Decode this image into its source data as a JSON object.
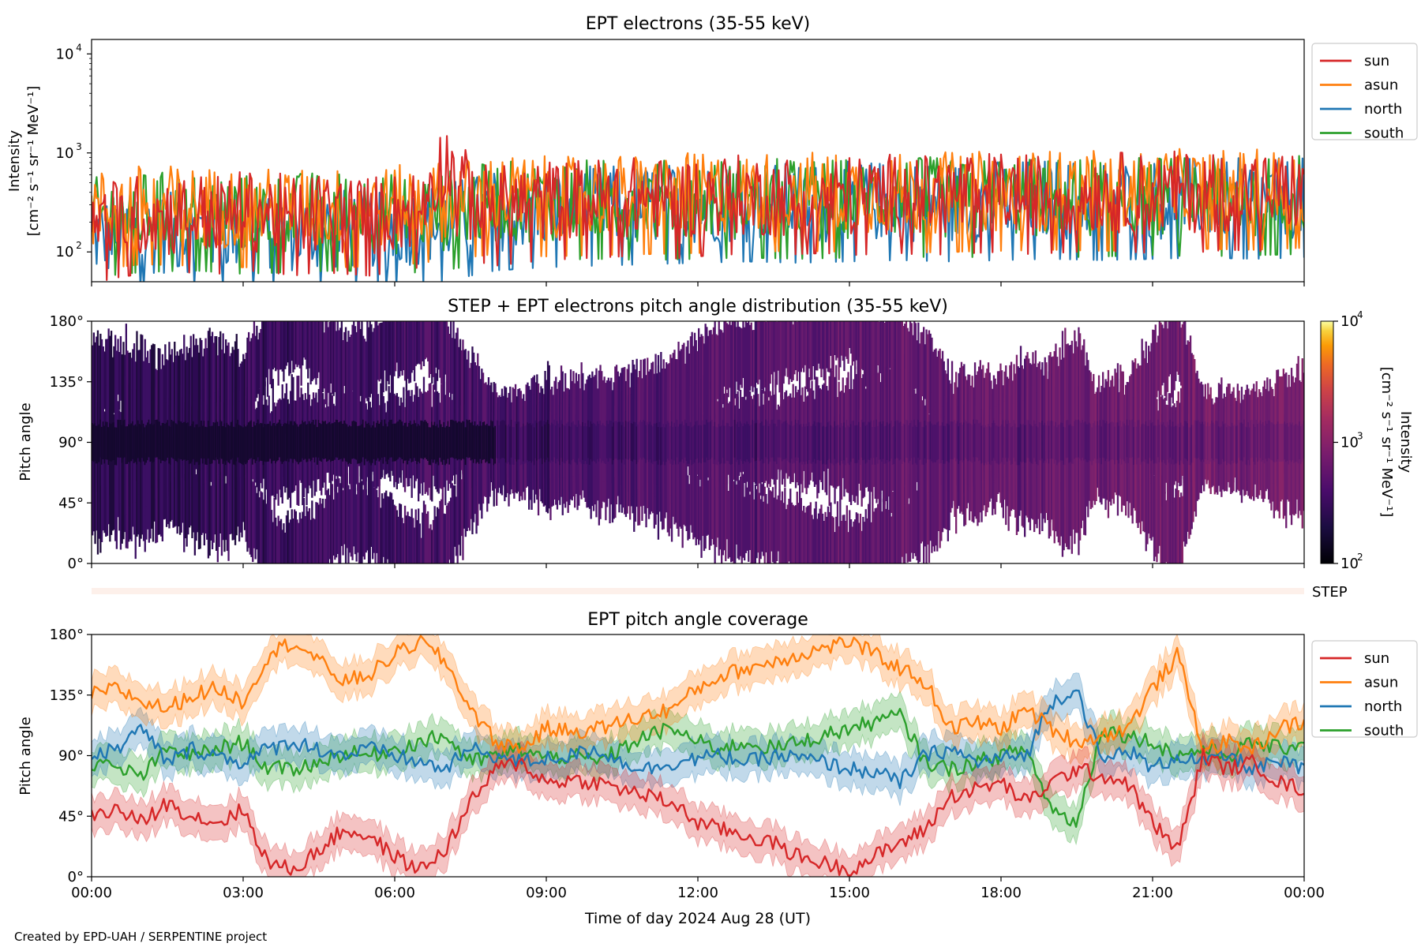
{
  "footer": "Created by EPD-UAH / SERPENTINE project",
  "colors": {
    "sun": "#d62728",
    "asun": "#ff7f0e",
    "north": "#1f77b4",
    "south": "#2ca02c",
    "step_bar": "#fdf0ea"
  },
  "chart_data": [
    {
      "type": "line",
      "title": "EPT electrons (35-55 keV)",
      "ylabel_line1": "Intensity",
      "ylabel_line2": "[cm⁻² s⁻¹ sr⁻¹ MeV⁻¹]",
      "yscale": "log",
      "ylim": [
        50,
        14000
      ],
      "xlim_hours": [
        0,
        24
      ],
      "yticks": [
        {
          "value": 100,
          "base": "10",
          "exp": "2"
        },
        {
          "value": 1000,
          "base": "10",
          "exp": "3"
        },
        {
          "value": 10000,
          "base": "10",
          "exp": "4"
        }
      ],
      "legend_position": "outside-right-top",
      "series": [
        {
          "name": "sun",
          "x_hours": [
            0,
            0.5,
            1,
            1.5,
            2,
            2.5,
            3,
            3.5,
            4,
            4.5,
            5,
            5.5,
            6,
            6.5,
            7,
            7.5,
            8,
            8.5,
            9,
            9.5,
            10,
            10.5,
            11,
            11.5,
            12,
            12.5,
            13,
            13.5,
            14,
            14.5,
            15,
            15.5,
            16,
            16.5,
            17,
            17.5,
            18,
            18.5,
            19,
            19.5,
            20,
            20.5,
            21,
            21.5,
            22,
            22.5,
            23,
            23.5,
            24
          ],
          "values": [
            190,
            220,
            240,
            230,
            250,
            240,
            260,
            250,
            230,
            250,
            240,
            230,
            250,
            280,
            800,
            330,
            290,
            310,
            330,
            340,
            350,
            360,
            350,
            340,
            360,
            380,
            370,
            360,
            380,
            390,
            370,
            380,
            390,
            370,
            380,
            390,
            400,
            380,
            390,
            400,
            410,
            400,
            390,
            410,
            400,
            420,
            410,
            400,
            420
          ]
        },
        {
          "name": "asun",
          "x_hours": [
            0,
            1,
            2,
            3,
            4,
            5,
            6,
            7,
            8,
            9,
            10,
            11,
            12,
            13,
            14,
            15,
            16,
            17,
            18,
            19,
            20,
            21,
            22,
            23,
            24
          ],
          "values": [
            260,
            300,
            290,
            280,
            270,
            280,
            290,
            330,
            380,
            360,
            370,
            380,
            390,
            400,
            410,
            400,
            390,
            400,
            410,
            420,
            410,
            420,
            430,
            420,
            440
          ]
        },
        {
          "name": "north",
          "x_hours": [
            0,
            1,
            2,
            3,
            4,
            5,
            6,
            7,
            8,
            9,
            10,
            11,
            12,
            13,
            14,
            15,
            16,
            17,
            18,
            19,
            20,
            21,
            22,
            23,
            24
          ],
          "values": [
            140,
            150,
            160,
            170,
            160,
            170,
            180,
            200,
            260,
            280,
            290,
            300,
            310,
            320,
            310,
            320,
            330,
            320,
            330,
            340,
            330,
            340,
            350,
            340,
            350
          ]
        },
        {
          "name": "south",
          "x_hours": [
            0,
            1,
            2,
            3,
            4,
            5,
            6,
            7,
            8,
            9,
            10,
            11,
            12,
            13,
            14,
            15,
            16,
            17,
            18,
            19,
            20,
            21,
            22,
            23,
            24
          ],
          "values": [
            220,
            250,
            260,
            240,
            250,
            260,
            240,
            260,
            320,
            330,
            340,
            330,
            340,
            350,
            340,
            350,
            360,
            350,
            360,
            350,
            360,
            370,
            360,
            370,
            380
          ]
        }
      ]
    },
    {
      "type": "heatmap",
      "title": "STEP + EPT electrons pitch angle distribution (35-55 keV)",
      "ylabel": "Pitch angle",
      "ylim": [
        0,
        180
      ],
      "yticks": [
        "0°",
        "45°",
        "90°",
        "135°",
        "180°"
      ],
      "xlim_hours": [
        0,
        24
      ],
      "colorbar": {
        "scale": "log",
        "range": [
          100,
          10000
        ],
        "label_line1": "Intensity",
        "label_line2": "[cm⁻² s⁻¹ sr⁻¹ MeV⁻¹]",
        "ticks": [
          {
            "value": 100,
            "base": "10",
            "exp": "2"
          },
          {
            "value": 1000,
            "base": "10",
            "exp": "3"
          },
          {
            "value": 10000,
            "base": "10",
            "exp": "4"
          }
        ],
        "colormap": "inferno"
      },
      "step_label": "STEP"
    },
    {
      "type": "line",
      "title": "EPT pitch angle coverage",
      "ylabel": "Pitch angle",
      "xlabel": "Time of day 2024 Aug 28 (UT)",
      "ylim": [
        0,
        180
      ],
      "yticks": [
        "0°",
        "45°",
        "90°",
        "135°",
        "180°"
      ],
      "xticks": [
        "00:00",
        "03:00",
        "06:00",
        "09:00",
        "12:00",
        "15:00",
        "18:00",
        "21:00",
        "00:00"
      ],
      "legend_position": "outside-right-top",
      "series": [
        {
          "name": "sun",
          "x_hours": [
            0,
            0.5,
            1,
            1.5,
            2,
            2.5,
            3,
            3.5,
            4,
            4.5,
            5,
            5.5,
            6,
            6.5,
            7,
            7.5,
            8,
            8.5,
            9,
            9.5,
            10,
            10.5,
            11,
            11.5,
            12,
            12.5,
            13,
            13.5,
            14,
            14.5,
            15,
            15.5,
            16,
            16.5,
            17,
            17.5,
            18,
            18.5,
            19,
            19.5,
            20,
            20.5,
            21,
            21.5,
            22,
            22.5,
            23,
            23.5,
            24
          ],
          "values": [
            45,
            50,
            40,
            55,
            45,
            40,
            50,
            10,
            5,
            20,
            35,
            30,
            15,
            5,
            20,
            55,
            80,
            85,
            70,
            72,
            70,
            65,
            60,
            55,
            40,
            35,
            30,
            25,
            15,
            10,
            5,
            15,
            25,
            35,
            60,
            65,
            70,
            55,
            70,
            80,
            75,
            70,
            40,
            20,
            90,
            80,
            85,
            70,
            65
          ]
        },
        {
          "name": "asun",
          "x_hours": [
            0,
            0.5,
            1,
            1.5,
            2,
            2.5,
            3,
            3.5,
            4,
            4.5,
            5,
            5.5,
            6,
            6.5,
            7,
            7.5,
            8,
            8.5,
            9,
            9.5,
            10,
            10.5,
            11,
            11.5,
            12,
            12.5,
            13,
            13.5,
            14,
            14.5,
            15,
            15.5,
            16,
            16.5,
            17,
            17.5,
            18,
            18.5,
            19,
            19.5,
            20,
            20.5,
            21,
            21.5,
            22,
            22.5,
            23,
            23.5,
            24
          ],
          "values": [
            135,
            140,
            130,
            125,
            135,
            140,
            130,
            165,
            175,
            160,
            145,
            150,
            165,
            175,
            160,
            125,
            100,
            95,
            110,
            108,
            110,
            115,
            120,
            125,
            140,
            150,
            155,
            160,
            165,
            170,
            175,
            165,
            155,
            145,
            110,
            115,
            110,
            125,
            110,
            100,
            105,
            110,
            140,
            165,
            95,
            100,
            95,
            110,
            115
          ]
        },
        {
          "name": "north",
          "x_hours": [
            0,
            0.5,
            1,
            1.5,
            2,
            2.5,
            3,
            3.5,
            4,
            4.5,
            5,
            5.5,
            6,
            6.5,
            7,
            7.5,
            8,
            8.5,
            9,
            9.5,
            10,
            10.5,
            11,
            11.5,
            12,
            12.5,
            13,
            13.5,
            14,
            14.5,
            15,
            15.5,
            16,
            16.5,
            17,
            17.5,
            18,
            18.5,
            19,
            19.5,
            20,
            20.5,
            21,
            21.5,
            22,
            22.5,
            23,
            23.5,
            24
          ],
          "values": [
            90,
            95,
            110,
            85,
            95,
            90,
            85,
            95,
            100,
            95,
            90,
            95,
            90,
            85,
            80,
            95,
            90,
            85,
            88,
            90,
            95,
            85,
            80,
            85,
            88,
            90,
            85,
            90,
            88,
            85,
            80,
            78,
            70,
            90,
            95,
            85,
            88,
            90,
            130,
            140,
            85,
            95,
            80,
            90,
            85,
            90,
            80,
            85,
            80
          ]
        },
        {
          "name": "south",
          "x_hours": [
            0,
            0.5,
            1,
            1.5,
            2,
            2.5,
            3,
            3.5,
            4,
            4.5,
            5,
            5.5,
            6,
            6.5,
            7,
            7.5,
            8,
            8.5,
            9,
            9.5,
            10,
            10.5,
            11,
            11.5,
            12,
            12.5,
            13,
            13.5,
            14,
            14.5,
            15,
            15.5,
            16,
            16.5,
            17,
            17.5,
            18,
            18.5,
            19,
            19.5,
            20,
            20.5,
            21,
            21.5,
            22,
            22.5,
            23,
            23.5,
            24
          ],
          "values": [
            85,
            80,
            75,
            95,
            90,
            95,
            100,
            80,
            80,
            85,
            92,
            90,
            95,
            100,
            105,
            85,
            90,
            95,
            88,
            90,
            85,
            95,
            105,
            110,
            100,
            95,
            100,
            95,
            100,
            105,
            110,
            115,
            120,
            85,
            80,
            85,
            90,
            95,
            50,
            40,
            110,
            105,
            100,
            90,
            95,
            90,
            100,
            95,
            100
          ]
        }
      ]
    }
  ]
}
